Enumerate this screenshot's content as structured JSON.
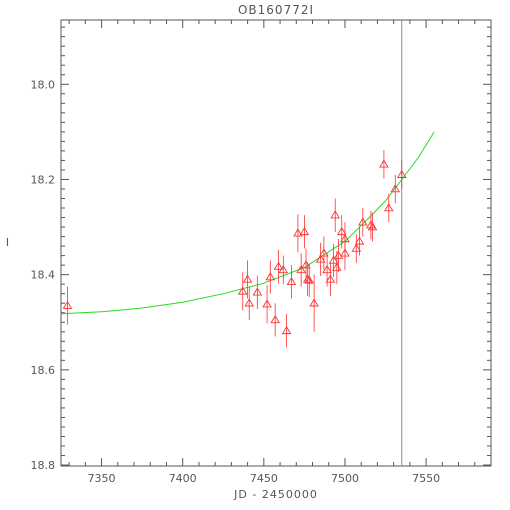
{
  "chart_data": {
    "type": "scatter",
    "title": "OB160772I",
    "xlabel": "JD - 2450000",
    "ylabel": "I",
    "xlim": [
      7325,
      7590
    ],
    "ylim": [
      18.802,
      17.865
    ],
    "y_inverted": true,
    "grid": false,
    "x_ticks": [
      7350,
      7400,
      7450,
      7500,
      7550
    ],
    "x_tick_labels": [
      "7350",
      "7400",
      "7450",
      "7500",
      "7550"
    ],
    "y_ticks": [
      18.0,
      18.2,
      18.4,
      18.6,
      18.8
    ],
    "y_tick_labels": [
      "18.0",
      "18.2",
      "18.4",
      "18.6",
      "18.8"
    ],
    "vertical_line_x": 7535,
    "colors": {
      "points": "#ff3030",
      "model": "#22dd22",
      "vline": "#8888bb",
      "axes": "#555555"
    },
    "series": [
      {
        "kind": "points",
        "marker": "triangle",
        "points": [
          {
            "x": 7329,
            "y": 18.465,
            "err": 0.04
          },
          {
            "x": 7437,
            "y": 18.435,
            "err": 0.04
          },
          {
            "x": 7440,
            "y": 18.41,
            "err": 0.04
          },
          {
            "x": 7441,
            "y": 18.46,
            "err": 0.035
          },
          {
            "x": 7446,
            "y": 18.437,
            "err": 0.035
          },
          {
            "x": 7452,
            "y": 18.462,
            "err": 0.04
          },
          {
            "x": 7454,
            "y": 18.405,
            "err": 0.035
          },
          {
            "x": 7457,
            "y": 18.495,
            "err": 0.035
          },
          {
            "x": 7459,
            "y": 18.383,
            "err": 0.035
          },
          {
            "x": 7462,
            "y": 18.39,
            "err": 0.03
          },
          {
            "x": 7464,
            "y": 18.518,
            "err": 0.035
          },
          {
            "x": 7467,
            "y": 18.415,
            "err": 0.035
          },
          {
            "x": 7471,
            "y": 18.313,
            "err": 0.04
          },
          {
            "x": 7473,
            "y": 18.39,
            "err": 0.035
          },
          {
            "x": 7475,
            "y": 18.31,
            "err": 0.035
          },
          {
            "x": 7476,
            "y": 18.38,
            "err": 0.035
          },
          {
            "x": 7477,
            "y": 18.41,
            "err": 0.035
          },
          {
            "x": 7478,
            "y": 18.412,
            "err": 0.035
          },
          {
            "x": 7481,
            "y": 18.46,
            "err": 0.06
          },
          {
            "x": 7485,
            "y": 18.368,
            "err": 0.035
          },
          {
            "x": 7487,
            "y": 18.355,
            "err": 0.035
          },
          {
            "x": 7489,
            "y": 18.39,
            "err": 0.035
          },
          {
            "x": 7491,
            "y": 18.41,
            "err": 0.035
          },
          {
            "x": 7493,
            "y": 18.37,
            "err": 0.035
          },
          {
            "x": 7494,
            "y": 18.275,
            "err": 0.035
          },
          {
            "x": 7495,
            "y": 18.385,
            "err": 0.035
          },
          {
            "x": 7496,
            "y": 18.36,
            "err": 0.035
          },
          {
            "x": 7498,
            "y": 18.31,
            "err": 0.035
          },
          {
            "x": 7500,
            "y": 18.325,
            "err": 0.035
          },
          {
            "x": 7500,
            "y": 18.355,
            "err": 0.035
          },
          {
            "x": 7507,
            "y": 18.345,
            "err": 0.03
          },
          {
            "x": 7509,
            "y": 18.33,
            "err": 0.03
          },
          {
            "x": 7511,
            "y": 18.29,
            "err": 0.03
          },
          {
            "x": 7516,
            "y": 18.296,
            "err": 0.03
          },
          {
            "x": 7517,
            "y": 18.3,
            "err": 0.03
          },
          {
            "x": 7524,
            "y": 18.168,
            "err": 0.03
          },
          {
            "x": 7527,
            "y": 18.26,
            "err": 0.03
          },
          {
            "x": 7531,
            "y": 18.22,
            "err": 0.03
          },
          {
            "x": 7535,
            "y": 18.19,
            "err": 0.03
          }
        ]
      },
      {
        "kind": "line",
        "points": [
          {
            "x": 7325,
            "y": 18.482
          },
          {
            "x": 7350,
            "y": 18.478
          },
          {
            "x": 7375,
            "y": 18.47
          },
          {
            "x": 7400,
            "y": 18.458
          },
          {
            "x": 7425,
            "y": 18.44
          },
          {
            "x": 7450,
            "y": 18.418
          },
          {
            "x": 7475,
            "y": 18.385
          },
          {
            "x": 7500,
            "y": 18.33
          },
          {
            "x": 7515,
            "y": 18.28
          },
          {
            "x": 7525,
            "y": 18.245
          },
          {
            "x": 7535,
            "y": 18.2
          },
          {
            "x": 7545,
            "y": 18.155
          },
          {
            "x": 7555,
            "y": 18.1
          }
        ]
      }
    ]
  }
}
